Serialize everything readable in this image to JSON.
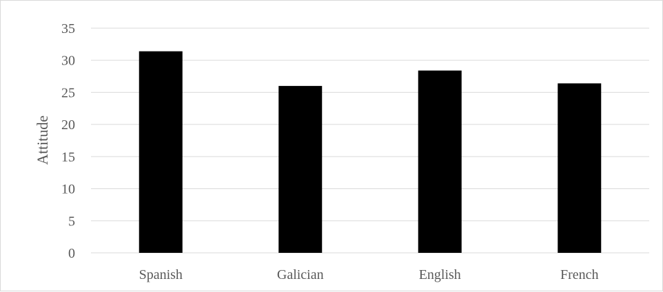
{
  "chart_data": {
    "type": "bar",
    "title": "",
    "xlabel": "",
    "ylabel": "Attitude",
    "categories": [
      "Spanish",
      "Galician",
      "English",
      "French"
    ],
    "values": [
      31.4,
      26.0,
      28.4,
      26.4
    ],
    "ylim": [
      0,
      35
    ],
    "yticks": [
      "0",
      "5",
      "10",
      "15",
      "20",
      "25",
      "30",
      "35"
    ],
    "grid": true,
    "legend": "none",
    "bar_color": "#000000",
    "grid_color": "#d9d9d9"
  }
}
